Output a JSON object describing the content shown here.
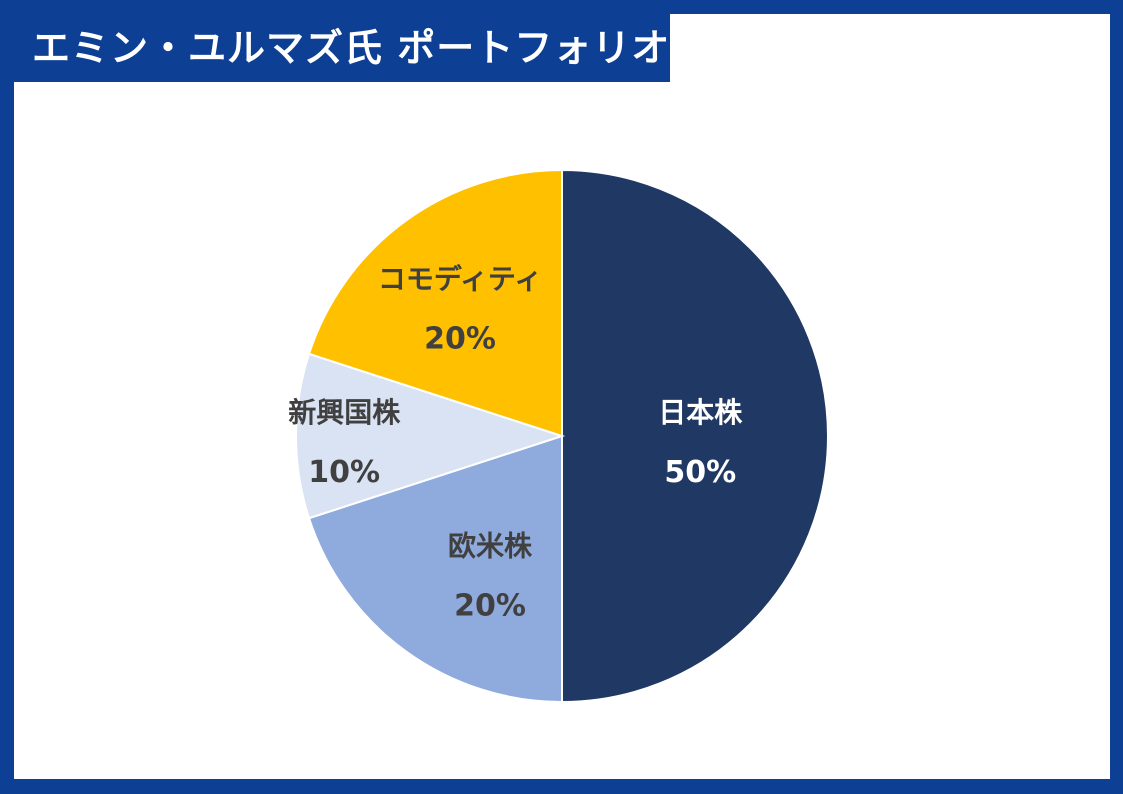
{
  "title": "エミン・ユルマズ氏 ポートフォリオ",
  "colors": {
    "frame": "#0d3f94",
    "background": "#ffffff",
    "label_dark": "#404040",
    "label_light": "#ffffff"
  },
  "chart_data": {
    "type": "pie",
    "start_angle_deg": 0,
    "direction": "clockwise",
    "slices": [
      {
        "label": "日本株",
        "value": 50,
        "value_label": "50%",
        "color": "#203864",
        "label_color": "#ffffff"
      },
      {
        "label": "欧米株",
        "value": 20,
        "value_label": "20%",
        "color": "#8faadc",
        "label_color": "#404040"
      },
      {
        "label": "新興国株",
        "value": 10,
        "value_label": "10%",
        "color": "#dae3f3",
        "label_color": "#404040"
      },
      {
        "label": "コモディティ",
        "value": 20,
        "value_label": "20%",
        "color": "#ffc000",
        "label_color": "#404040"
      }
    ]
  }
}
